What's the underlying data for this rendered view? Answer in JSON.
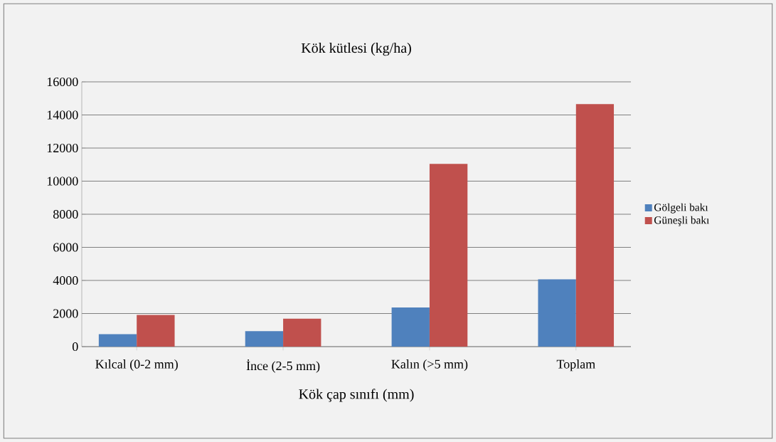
{
  "chart_data": {
    "type": "bar",
    "title": "Kök kütlesi (kg/ha)",
    "xlabel": "Kök çap sınıfı (mm)",
    "categories": [
      "Kılcal (0-2 mm)",
      "İnce (2-5 mm)",
      "Kalın (>5 mm)",
      "Toplam"
    ],
    "series": [
      {
        "name": "Gölgeli bakı",
        "color": "#4f81bd",
        "values": [
          750,
          940,
          2370,
          4080
        ]
      },
      {
        "name": "Güneşli bakı",
        "color": "#c0504d",
        "values": [
          1910,
          1690,
          11040,
          14660
        ]
      }
    ],
    "ylim": [
      0,
      16000
    ],
    "yticks": [
      0,
      2000,
      4000,
      6000,
      8000,
      10000,
      12000,
      14000,
      16000
    ],
    "grid": "y",
    "legend": "right"
  }
}
